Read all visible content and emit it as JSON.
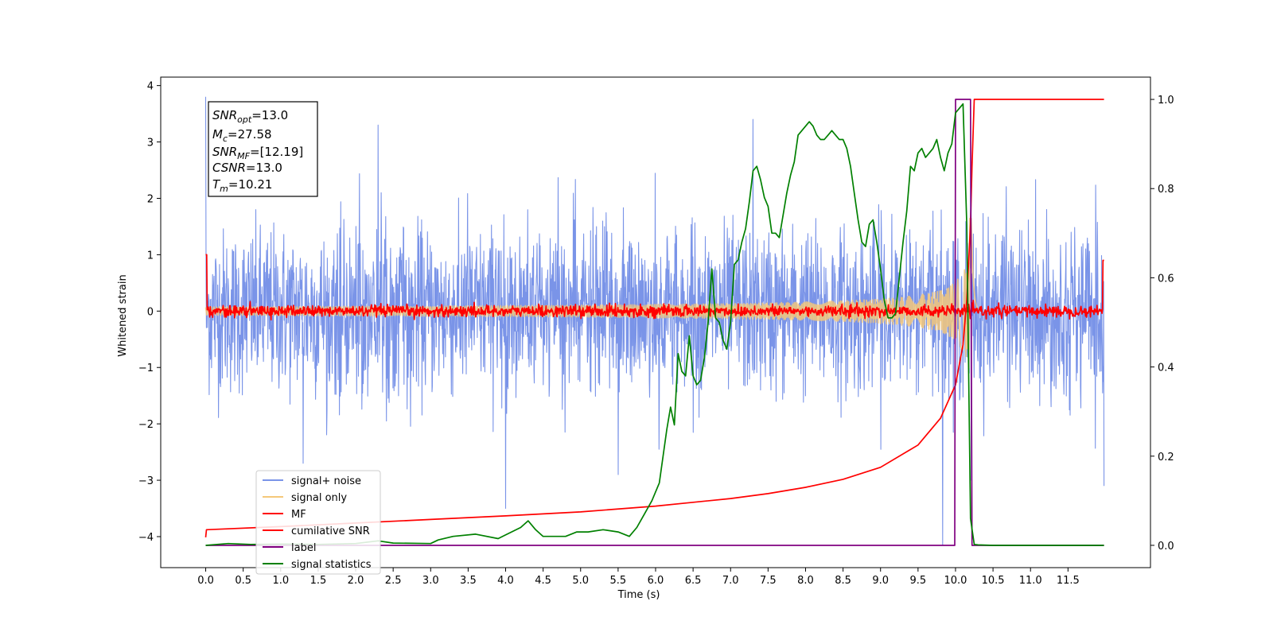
{
  "chart_data": {
    "type": "line",
    "xlabel": "Time (s)",
    "ylabel": "Whitened strain",
    "xlim": [
      -0.6,
      12.6
    ],
    "ylim": [
      -4.55,
      4.15
    ],
    "y2lim": [
      -0.05,
      1.05
    ],
    "grid": false,
    "legend_position": "lower-left",
    "x_ticks": [
      "0.0",
      "0.5",
      "1.0",
      "1.5",
      "2.0",
      "2.5",
      "3.0",
      "3.5",
      "4.0",
      "4.5",
      "5.0",
      "5.5",
      "6.0",
      "6.5",
      "7.0",
      "7.5",
      "8.0",
      "8.5",
      "9.0",
      "9.5",
      "10.0",
      "10.5",
      "11.0",
      "11.5"
    ],
    "y_ticks": [
      "4",
      "3",
      "2",
      "1",
      "0",
      "−1",
      "−2",
      "−3",
      "−4"
    ],
    "y2_ticks": [
      "1.0",
      "0.8",
      "0.6",
      "0.4",
      "0.2",
      "0.0"
    ],
    "info_box": {
      "snr_opt": {
        "sym": "SNR",
        "sub": "opt",
        "value": "=13.0"
      },
      "mc": {
        "sym": "M",
        "sub": "c",
        "value": "=27.58"
      },
      "snr_mf": {
        "sym": "SNR",
        "sub": "MF",
        "value": "=[12.19]"
      },
      "csnr": {
        "sym": "CSNR",
        "value": "=13.0"
      },
      "tm": {
        "sym": "T",
        "sub": "m",
        "value": "=10.21"
      }
    },
    "series": [
      {
        "name": "signal+ noise",
        "color": "#7a94e8",
        "axis": "left",
        "kind": "noise",
        "t_range": [
          0.0,
          11.98
        ],
        "envelope": 1.9,
        "spikes": [
          [
            0.0,
            3.8
          ],
          [
            1.3,
            -2.7
          ],
          [
            2.3,
            3.3
          ],
          [
            4.0,
            -3.5
          ],
          [
            5.5,
            -2.9
          ],
          [
            7.3,
            3.4
          ],
          [
            9.83,
            -4.15
          ],
          [
            10.2,
            2.6
          ],
          [
            10.21,
            -3.0
          ],
          [
            11.98,
            -3.1
          ]
        ]
      },
      {
        "name": "signal only",
        "color": "#f5c87a",
        "axis": "left",
        "kind": "chirp",
        "t_range": [
          0.0,
          10.3
        ],
        "peak_time": 10.21,
        "peak_amplitude": 1.7
      },
      {
        "name": "MF",
        "color": "#ff0000",
        "axis": "left",
        "kind": "mf",
        "t_range": [
          0.0,
          11.98
        ],
        "start_value": 1.0,
        "end_value": 0.9,
        "noise_amplitude": 0.09
      },
      {
        "name": "cumilative SNR",
        "color": "#ff0000",
        "axis": "right",
        "kind": "line",
        "x": [
          0.0,
          0.01,
          1.0,
          2.0,
          3.0,
          4.0,
          5.0,
          6.0,
          7.0,
          7.5,
          8.0,
          8.5,
          9.0,
          9.5,
          9.8,
          10.0,
          10.1,
          10.15,
          10.2,
          10.22,
          10.25,
          10.3,
          11.0,
          11.98
        ],
        "y": [
          0.018,
          0.035,
          0.042,
          0.05,
          0.058,
          0.066,
          0.075,
          0.088,
          0.105,
          0.116,
          0.13,
          0.148,
          0.175,
          0.225,
          0.285,
          0.36,
          0.45,
          0.55,
          0.72,
          0.85,
          1.0,
          1.0,
          1.0,
          1.0
        ]
      },
      {
        "name": "label",
        "color": "#800080",
        "axis": "right",
        "kind": "line",
        "x": [
          0.0,
          9.99,
          10.0,
          10.2,
          10.22,
          11.98
        ],
        "y": [
          0.0,
          0.0,
          1.0,
          1.0,
          0.0,
          0.0
        ]
      },
      {
        "name": "signal statistics",
        "color": "#008000",
        "axis": "right",
        "kind": "line",
        "x": [
          0.0,
          0.3,
          0.6,
          1.0,
          1.5,
          2.0,
          2.3,
          2.5,
          3.0,
          3.1,
          3.3,
          3.6,
          3.9,
          4.2,
          4.3,
          4.4,
          4.5,
          4.8,
          4.95,
          5.1,
          5.3,
          5.5,
          5.65,
          5.75,
          5.85,
          5.95,
          6.05,
          6.1,
          6.15,
          6.2,
          6.25,
          6.3,
          6.35,
          6.4,
          6.45,
          6.5,
          6.55,
          6.6,
          6.65,
          6.7,
          6.75,
          6.8,
          6.85,
          6.9,
          6.95,
          7.0,
          7.05,
          7.1,
          7.15,
          7.2,
          7.25,
          7.3,
          7.35,
          7.4,
          7.45,
          7.5,
          7.55,
          7.6,
          7.65,
          7.7,
          7.75,
          7.8,
          7.85,
          7.9,
          7.95,
          8.0,
          8.05,
          8.1,
          8.15,
          8.2,
          8.25,
          8.3,
          8.35,
          8.4,
          8.45,
          8.5,
          8.55,
          8.6,
          8.65,
          8.7,
          8.75,
          8.8,
          8.85,
          8.9,
          8.95,
          9.0,
          9.05,
          9.1,
          9.15,
          9.2,
          9.25,
          9.3,
          9.35,
          9.4,
          9.45,
          9.5,
          9.55,
          9.6,
          9.65,
          9.7,
          9.75,
          9.8,
          9.85,
          9.9,
          9.95,
          10.0,
          10.05,
          10.1,
          10.15,
          10.2,
          10.25,
          10.3,
          10.5,
          11.0,
          11.98
        ],
        "y": [
          0.0,
          0.004,
          0.002,
          0.003,
          0.002,
          0.004,
          0.01,
          0.005,
          0.004,
          0.012,
          0.02,
          0.025,
          0.015,
          0.04,
          0.055,
          0.035,
          0.02,
          0.02,
          0.03,
          0.03,
          0.035,
          0.03,
          0.02,
          0.04,
          0.07,
          0.1,
          0.14,
          0.2,
          0.26,
          0.31,
          0.27,
          0.43,
          0.39,
          0.38,
          0.47,
          0.38,
          0.36,
          0.37,
          0.42,
          0.5,
          0.62,
          0.51,
          0.5,
          0.46,
          0.44,
          0.5,
          0.63,
          0.64,
          0.68,
          0.71,
          0.77,
          0.84,
          0.85,
          0.82,
          0.78,
          0.76,
          0.7,
          0.7,
          0.69,
          0.74,
          0.79,
          0.83,
          0.86,
          0.92,
          0.93,
          0.94,
          0.95,
          0.94,
          0.92,
          0.91,
          0.91,
          0.92,
          0.93,
          0.92,
          0.91,
          0.91,
          0.89,
          0.85,
          0.79,
          0.73,
          0.68,
          0.67,
          0.72,
          0.73,
          0.68,
          0.62,
          0.55,
          0.51,
          0.51,
          0.52,
          0.6,
          0.68,
          0.75,
          0.85,
          0.84,
          0.88,
          0.89,
          0.87,
          0.88,
          0.89,
          0.91,
          0.87,
          0.84,
          0.88,
          0.9,
          0.97,
          0.98,
          0.99,
          0.72,
          0.06,
          0.002,
          0.001,
          0.0,
          0.0,
          0.0
        ]
      }
    ]
  }
}
